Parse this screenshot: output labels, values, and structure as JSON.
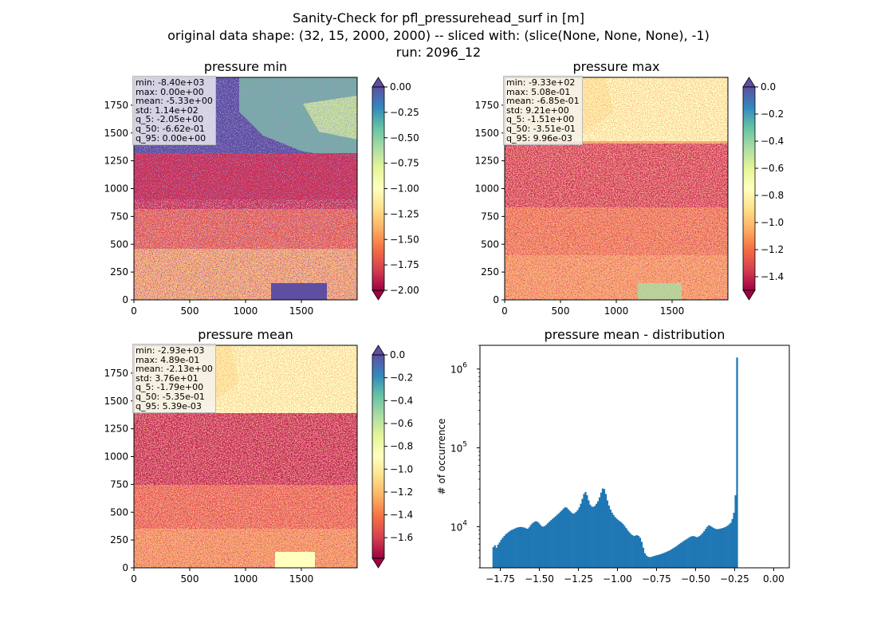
{
  "figure": {
    "suptitle_lines": [
      "Sanity-Check for pfl_pressurehead_surf in [m]",
      "original data shape: (32, 15, 2000, 2000) -- sliced with: (slice(None, None, None), -1)",
      "run: 2096_12"
    ]
  },
  "panels": [
    {
      "title": "pressure min",
      "stats": [
        "min: -8.40e+03",
        "max: 0.00e+00",
        "mean: -5.33e+00",
        "std: 1.14e+02",
        "q_5: -2.05e+00",
        "q_50: -6.62e-01",
        "q_95: 0.00e+00"
      ],
      "colorbar": {
        "ticks": [
          "0.00",
          "−0.25",
          "−0.50",
          "−0.75",
          "−1.00",
          "−1.25",
          "−1.50",
          "−1.75",
          "−2.00"
        ],
        "vmin": -2.0,
        "vmax": 0.0,
        "extend": "both"
      }
    },
    {
      "title": "pressure max",
      "stats": [
        "min: -9.33e+02",
        "max: 5.08e-01",
        "mean: -6.85e-01",
        "std: 9.21e+00",
        "q_5: -1.51e+00",
        "q_50: -3.51e-01",
        "q_95: 9.96e-03"
      ],
      "colorbar": {
        "ticks": [
          "0.0",
          "−0.2",
          "−0.4",
          "−0.6",
          "−0.8",
          "−1.0",
          "−1.2",
          "−1.4"
        ],
        "vmin": -1.5,
        "vmax": 0.0,
        "extend": "both"
      }
    },
    {
      "title": "pressure mean",
      "stats": [
        "min: -2.93e+03",
        "max: 4.89e-01",
        "mean: -2.13e+00",
        "std: 3.76e+01",
        "q_5: -1.79e+00",
        "q_50: -5.35e-01",
        "q_95: 5.39e-03"
      ],
      "colorbar": {
        "ticks": [
          "0.0",
          "−0.2",
          "−0.4",
          "−0.6",
          "−0.8",
          "−1.0",
          "−1.2",
          "−1.4",
          "−1.6"
        ],
        "vmin": -1.78,
        "vmax": 0.0,
        "extend": "both"
      }
    }
  ],
  "map_axes": {
    "xticks": [
      "0",
      "500",
      "1000",
      "1500"
    ],
    "yticks": [
      "0",
      "250",
      "500",
      "750",
      "1000",
      "1250",
      "1500",
      "1750"
    ]
  },
  "colors": {
    "spectral": [
      "#9e0142",
      "#d53e4f",
      "#f46d43",
      "#fdae61",
      "#fee08b",
      "#ffffbf",
      "#e6f598",
      "#abdda4",
      "#66c2a5",
      "#3288bd",
      "#5e4fa2"
    ],
    "histogram": "#1f77b4"
  },
  "chart_data": [
    {
      "type": "heatmap",
      "title": "pressure min",
      "xlim": [
        0,
        2000
      ],
      "ylim": [
        0,
        2000
      ],
      "color_range": [
        -2.0,
        0.0
      ],
      "colormap": "Spectral"
    },
    {
      "type": "heatmap",
      "title": "pressure max",
      "xlim": [
        0,
        2000
      ],
      "ylim": [
        0,
        2000
      ],
      "color_range": [
        -1.5,
        0.0
      ],
      "colormap": "Spectral"
    },
    {
      "type": "heatmap",
      "title": "pressure mean",
      "xlim": [
        0,
        2000
      ],
      "ylim": [
        0,
        2000
      ],
      "color_range": [
        -1.78,
        0.0
      ],
      "colormap": "Spectral"
    },
    {
      "type": "bar",
      "title": "pressure mean - distribution",
      "xlabel": "",
      "ylabel": "# of occurrence",
      "yscale": "log",
      "xlim": [
        -1.88,
        0.1
      ],
      "ylim": [
        3000,
        2000000
      ],
      "xticks": [
        "−1.75",
        "−1.50",
        "−1.25",
        "−1.00",
        "−0.75",
        "−0.50",
        "−0.25",
        "0.00"
      ],
      "yticks": [
        "10^4",
        "10^5",
        "10^6"
      ],
      "bin_start": -1.8,
      "bin_width": 0.01,
      "values": [
        5500,
        5800,
        5400,
        5900,
        6300,
        6800,
        7200,
        7600,
        8000,
        8300,
        8600,
        8900,
        9100,
        9300,
        9500,
        9700,
        9800,
        9900,
        9900,
        9800,
        9700,
        9500,
        9400,
        9800,
        10500,
        11000,
        11400,
        11700,
        11600,
        11200,
        10600,
        10100,
        10000,
        10200,
        10600,
        11100,
        11600,
        12100,
        12600,
        13100,
        13600,
        14200,
        14800,
        15500,
        16200,
        17000,
        17600,
        17400,
        16600,
        15800,
        15100,
        14600,
        14800,
        15400,
        16200,
        17500,
        19500,
        22500,
        26000,
        27500,
        25000,
        21500,
        19000,
        18000,
        17800,
        18300,
        19500,
        21000,
        23500,
        27000,
        30500,
        30000,
        26000,
        21500,
        18500,
        16500,
        15000,
        14000,
        13200,
        12600,
        12100,
        11700,
        11300,
        10800,
        10200,
        9600,
        9000,
        8500,
        8100,
        7800,
        7600,
        7700,
        7800,
        7600,
        7200,
        6400,
        5400,
        4600,
        4300,
        4150,
        4100,
        4120,
        4180,
        4240,
        4300,
        4350,
        4400,
        4470,
        4540,
        4620,
        4700,
        4800,
        4900,
        5000,
        5150,
        5300,
        5450,
        5600,
        5800,
        6000,
        6200,
        6400,
        6600,
        6800,
        7000,
        7200,
        7400,
        7550,
        7600,
        7500,
        7350,
        7400,
        7600,
        7900,
        8300,
        8800,
        9400,
        10000,
        10400,
        10200,
        9900,
        9600,
        9400,
        9300,
        9300,
        9400,
        9500,
        9600,
        9800,
        10000,
        10300,
        10700,
        11200,
        12500,
        15000,
        25000,
        1400000
      ]
    }
  ]
}
